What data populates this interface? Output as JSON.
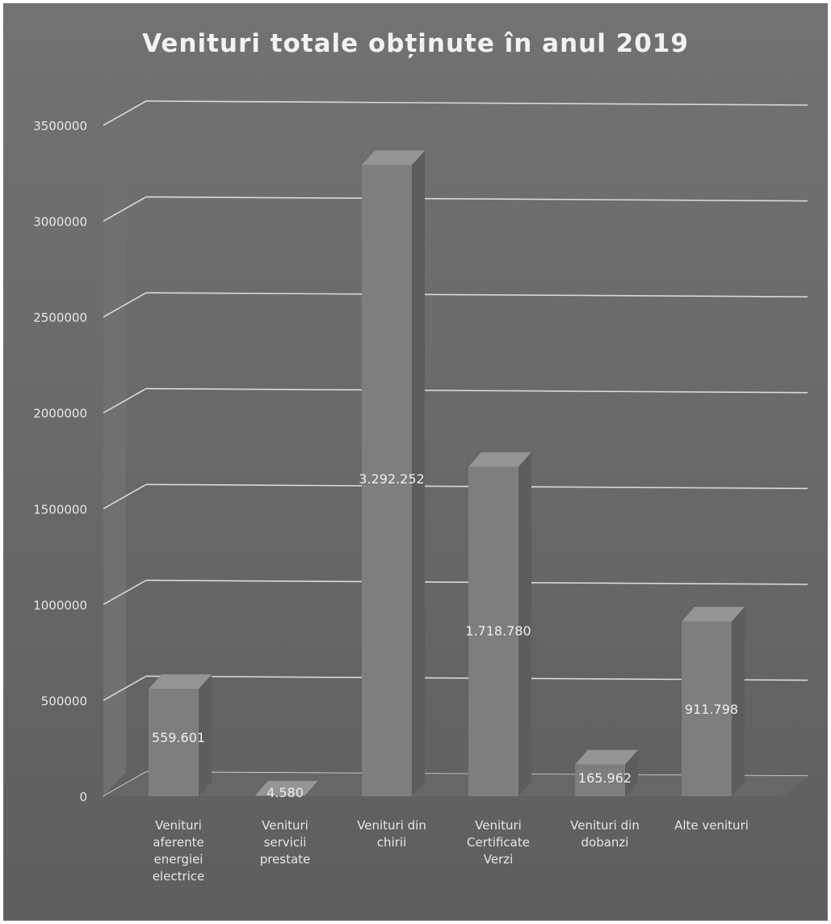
{
  "chart_data": {
    "type": "bar",
    "title": "Venituri totale obținute în anul 2019",
    "categories": [
      [
        "Venituri",
        "aferente",
        "energiei",
        "electrice"
      ],
      [
        "Venituri",
        "servicii",
        "prestate"
      ],
      [
        "Venituri din",
        "chirii"
      ],
      [
        "Venituri",
        "Certificate",
        "Verzi"
      ],
      [
        "Venituri din",
        "dobanzi"
      ],
      [
        "Alte venituri"
      ]
    ],
    "values": [
      559601,
      4580,
      3292252,
      1718780,
      165962,
      911798
    ],
    "data_labels": [
      "559.601",
      "4.580",
      "3.292.252",
      "1.718.780",
      "165.962",
      "911.798"
    ],
    "y_ticks": [
      "0",
      "500000",
      "1000000",
      "1500000",
      "2000000",
      "2500000",
      "3000000",
      "3500000"
    ],
    "ylim": [
      0,
      3500000
    ],
    "grid": true,
    "legend": "none",
    "colors": {
      "background": "#6b6b6b",
      "bar_front": "#7e7e7e",
      "bar_side": "#5d5d5d",
      "bar_top": "#959595",
      "gridline": "#d9d9d9",
      "text": "#e6e6e6"
    }
  }
}
